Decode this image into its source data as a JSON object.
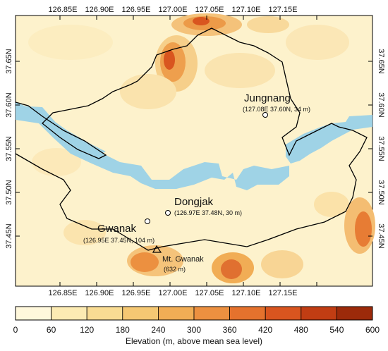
{
  "map": {
    "lon_ticks": [
      "126.85E",
      "126.90E",
      "126.95E",
      "127.00E",
      "127.05E",
      "127.10E",
      "127.15E"
    ],
    "lat_ticks": [
      "37.65N",
      "37.60N",
      "37.55N",
      "37.50N",
      "37.45N"
    ],
    "river_color": "#9fd3e6",
    "boundary_color": "#000000"
  },
  "sites": [
    {
      "id": "jungnang",
      "name": "Jungnang",
      "coords": "(127.08E 37.60N, 34 m)",
      "marker": "circle"
    },
    {
      "id": "dongjak",
      "name": "Dongjak",
      "coords": "(126.97E 37.48N, 30 m)",
      "marker": "circle"
    },
    {
      "id": "gwanak",
      "name": "Gwanak",
      "coords": "(126.95E 37.45N, 104 m)",
      "marker": "circle"
    },
    {
      "id": "mt-gwanak",
      "name": "Mt. Gwanak",
      "coords": "(632 m)",
      "marker": "triangle"
    }
  ],
  "colorbar": {
    "title": "Elevation (m, above mean sea level)",
    "ticks": [
      "0",
      "60",
      "120",
      "180",
      "240",
      "300",
      "360",
      "420",
      "480",
      "540",
      "600"
    ],
    "colors": [
      "#fff8dc",
      "#fcebb3",
      "#f9dc93",
      "#f5c873",
      "#f1ad55",
      "#ec9040",
      "#e5722d",
      "#d9551f",
      "#c13d13",
      "#9c2a0a"
    ]
  }
}
